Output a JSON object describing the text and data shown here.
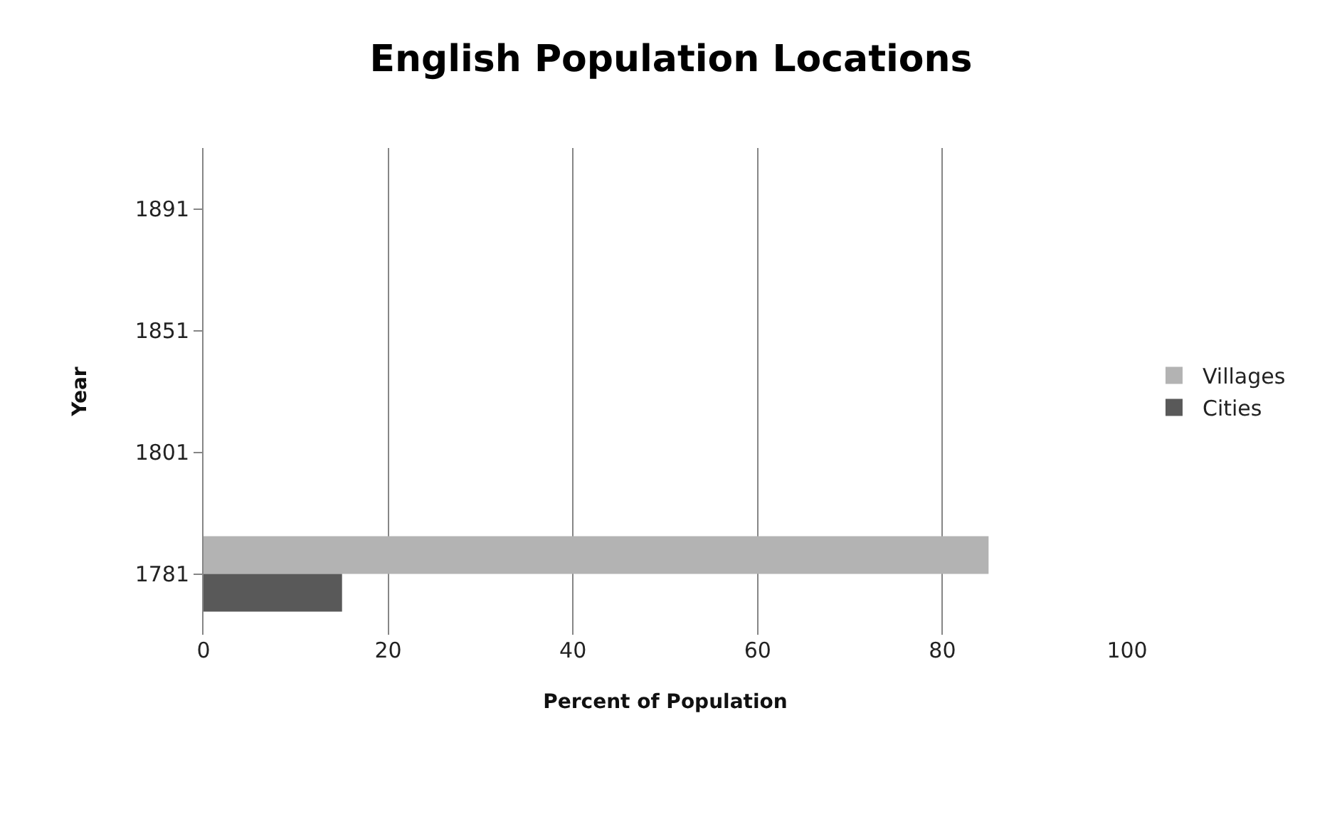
{
  "chart_data": {
    "type": "bar",
    "orientation": "horizontal",
    "title": "English Population Locations",
    "xlabel": "Percent of Population",
    "ylabel": "Year",
    "categories": [
      "1891",
      "1851",
      "1801",
      "1781"
    ],
    "series": [
      {
        "name": "Villages",
        "color": "#b3b3b3",
        "values": [
          null,
          null,
          null,
          85
        ]
      },
      {
        "name": "Cities",
        "color": "#595959",
        "values": [
          null,
          null,
          null,
          15
        ]
      }
    ],
    "xlim": [
      0,
      100
    ],
    "xticks": [
      0,
      20,
      40,
      60,
      80,
      100
    ],
    "grid": "x",
    "legend": "right"
  }
}
